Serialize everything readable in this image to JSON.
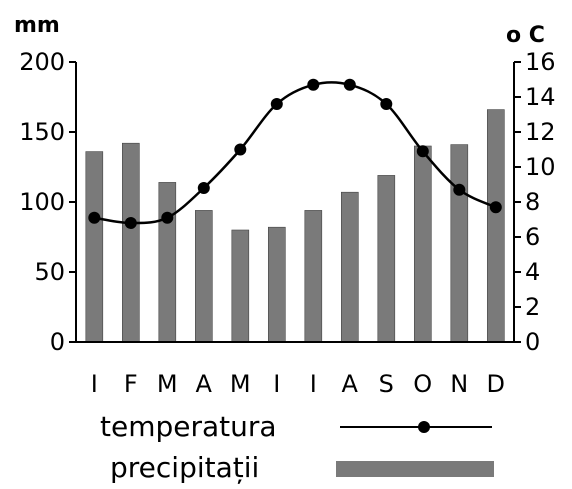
{
  "chart_data": {
    "type": "bar+line",
    "categories": [
      "I",
      "F",
      "M",
      "A",
      "M",
      "I",
      "I",
      "A",
      "S",
      "O",
      "N",
      "D"
    ],
    "series": [
      {
        "name": "precipitații",
        "type": "bar",
        "axis": "left",
        "color": "#7a7a7a",
        "values": [
          136,
          142,
          114,
          94,
          80,
          82,
          94,
          107,
          119,
          140,
          141,
          166
        ]
      },
      {
        "name": "temperatura",
        "type": "line",
        "axis": "right",
        "color": "#000000",
        "values": [
          7.1,
          6.8,
          7.1,
          8.8,
          11.0,
          13.6,
          14.7,
          14.7,
          13.6,
          10.9,
          8.7,
          7.7
        ]
      }
    ],
    "left_axis": {
      "label": "mm",
      "range": [
        0,
        200
      ],
      "ticks": [
        0,
        50,
        100,
        150,
        200
      ]
    },
    "right_axis": {
      "label": "o C",
      "range": [
        0,
        16
      ],
      "ticks": [
        0,
        2,
        4,
        6,
        8,
        10,
        12,
        14,
        16
      ]
    },
    "grid": false,
    "legend_placement": "bottom"
  },
  "legend": {
    "line_label": "temperatura",
    "bar_label": "precipitații"
  }
}
